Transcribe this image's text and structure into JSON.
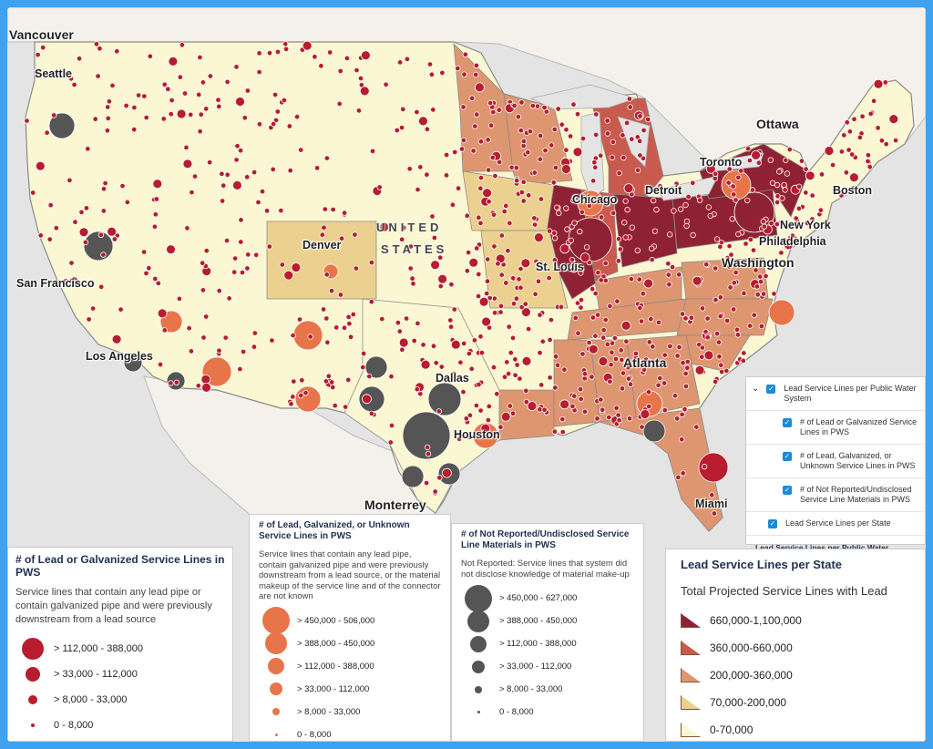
{
  "map": {
    "cities": [
      {
        "id": "vancouver",
        "name": "Vancouver"
      },
      {
        "id": "seattle",
        "name": "Seattle"
      },
      {
        "id": "ottawa",
        "name": "Ottawa"
      },
      {
        "id": "toronto",
        "name": "Toronto"
      },
      {
        "id": "boston",
        "name": "Boston"
      },
      {
        "id": "chicago",
        "name": "Chicago"
      },
      {
        "id": "detroit",
        "name": "Detroit"
      },
      {
        "id": "newyork",
        "name": "New York"
      },
      {
        "id": "philadelphia",
        "name": "Philadelphia"
      },
      {
        "id": "washington",
        "name": "Washington"
      },
      {
        "id": "denver",
        "name": "Denver"
      },
      {
        "id": "sanfrancisco",
        "name": "San Francisco"
      },
      {
        "id": "stlouis",
        "name": "St. Louis"
      },
      {
        "id": "losangeles",
        "name": "Los Angeles"
      },
      {
        "id": "atlanta",
        "name": "Atlanta"
      },
      {
        "id": "dallas",
        "name": "Dallas"
      },
      {
        "id": "houston",
        "name": "Houston"
      },
      {
        "id": "monterrey",
        "name": "Monterrey"
      },
      {
        "id": "miami",
        "name": "Miami"
      }
    ],
    "country_line1": "UNITED",
    "country_line2": "STATES",
    "colors": {
      "land": "#fbf7d2",
      "water": "#e4e4e4",
      "dot_red": "#b81c2e",
      "dot_orange": "#e8744a",
      "dot_gray": "#555555"
    }
  },
  "layers": {
    "group_label": "Lead Service Lines per Public Water System",
    "items": [
      "# of Lead or Galvanized Service Lines in PWS",
      "# of Lead, Galvanized, or Unknown Service Lines in PWS",
      "# of Not Reported/Undisclosed Service Line Materials in PWS"
    ],
    "state_layer": "Lead Service Lines per State",
    "footer": "Lead Service Lines per Public Water System",
    "check_glyph": "✓",
    "expand_glyph": "⌄"
  },
  "legend_lead": {
    "title": "# of Lead or Galvanized Service Lines in PWS",
    "desc": "Service lines that contain any lead pipe or contain galvanized pipe and were previously downstream from a lead source",
    "classes": [
      "> 112,000 - 388,000",
      "> 33,000 - 112,000",
      "> 8,000 - 33,000",
      "0 - 8,000"
    ],
    "color": "#b81c2e"
  },
  "legend_unknown": {
    "title": "# of Lead, Galvanized, or Unknown Service Lines in PWS",
    "desc": "Service lines that contain any lead pipe, contain galvanized pipe and were previously downstream from a lead source, or the material makeup of the service line and of the connector are not known",
    "classes": [
      "> 450,000 - 506,000",
      "> 388,000 - 450,000",
      "> 112,000 - 388,000",
      "> 33,000 - 112,000",
      "> 8,000 - 33,000",
      "0 - 8,000"
    ],
    "color": "#e8744a"
  },
  "legend_notreported": {
    "title": "# of Not Reported/Undisclosed Service Line Materials in PWS",
    "desc": "Not Reported: Service lines that system did not disclose knowledge of material make-up",
    "classes": [
      "> 450,000 - 627,000",
      "> 388,000 - 450,000",
      "> 112,000 - 388,000",
      "> 33,000 - 112,000",
      "> 8,000 - 33,000",
      "0 - 8,000"
    ],
    "color": "#555555"
  },
  "legend_state": {
    "title": "Lead Service Lines per State",
    "subtitle": "Total Projected Service Lines with Lead",
    "classes": [
      {
        "label": "660,000-1,100,000",
        "color": "#8e2234"
      },
      {
        "label": "360,000-660,000",
        "color": "#c85b4e"
      },
      {
        "label": "200,000-360,000",
        "color": "#dd9670"
      },
      {
        "label": "70,000-200,000",
        "color": "#ecd08f"
      },
      {
        "label": "0-70,000",
        "color": "#fbf7d2"
      }
    ]
  }
}
